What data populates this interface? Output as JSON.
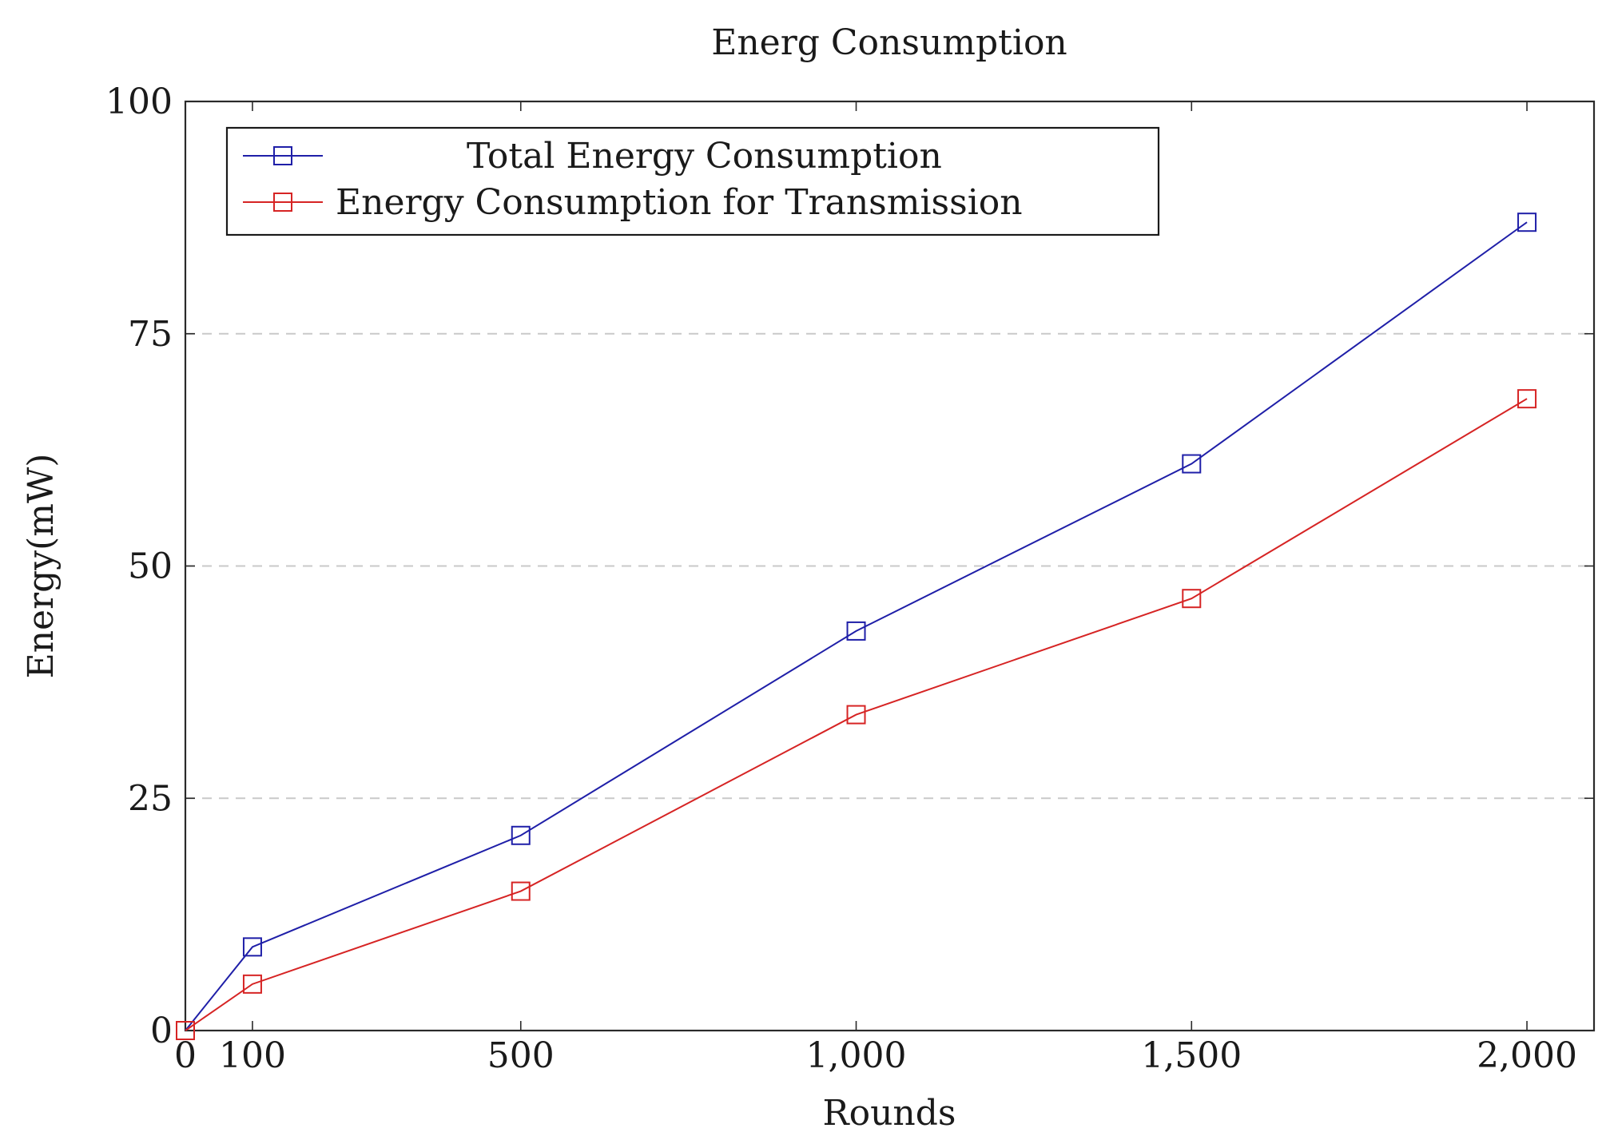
{
  "chart_data": {
    "type": "line",
    "title": "Energ Consumption",
    "xlabel": "Rounds",
    "ylabel": "Energy(mW)",
    "x": [
      0,
      100,
      500,
      1000,
      1500,
      2000
    ],
    "xlim": [
      0,
      2100
    ],
    "ylim": [
      0,
      100
    ],
    "xticks": [
      0,
      100,
      500,
      1000,
      1500,
      2000
    ],
    "xtick_labels": [
      "0",
      "100",
      "500",
      "1,000",
      "1,500",
      "2,000"
    ],
    "yticks": [
      0,
      25,
      50,
      75,
      100
    ],
    "ytick_labels": [
      "0",
      "25",
      "50",
      "75",
      "100"
    ],
    "grid": "horizontal dashed",
    "legend_position": "top-left",
    "series": [
      {
        "name": "Total Energy Consumption",
        "color": "#1f1fa8",
        "marker": "square",
        "values": [
          0,
          9,
          21,
          43,
          61,
          87
        ]
      },
      {
        "name": "Energy Consumption for Transmission",
        "color": "#d62424",
        "marker": "square",
        "values": [
          0,
          5,
          15,
          34,
          46.5,
          68
        ]
      }
    ]
  }
}
